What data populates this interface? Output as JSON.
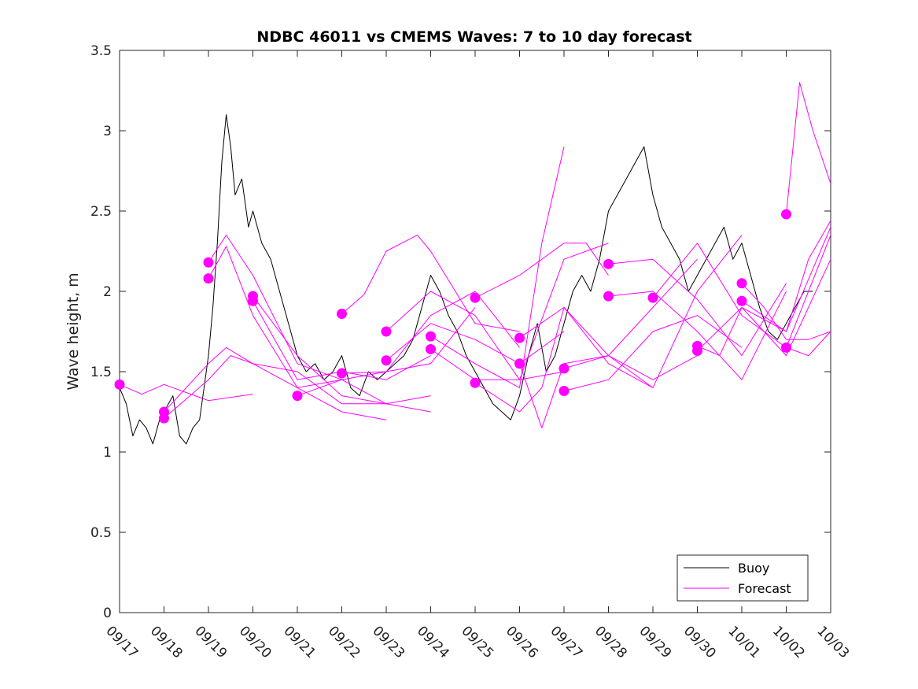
{
  "chart_data": {
    "type": "line",
    "title": "NDBC 46011 vs CMEMS Waves: 7 to 10 day forecast",
    "xlabel": "",
    "ylabel": "Wave height, m",
    "xlim": [
      0,
      16
    ],
    "ylim": [
      0,
      3.5
    ],
    "yticks": [
      "0",
      "0.5",
      "1",
      "1.5",
      "2",
      "2.5",
      "3",
      "3.5"
    ],
    "ytick_values": [
      0,
      0.5,
      1,
      1.5,
      2,
      2.5,
      3,
      3.5
    ],
    "xticks": [
      "09/17",
      "09/18",
      "09/19",
      "09/20",
      "09/21",
      "09/22",
      "09/23",
      "09/24",
      "09/25",
      "09/26",
      "09/27",
      "09/28",
      "09/29",
      "09/30",
      "10/01",
      "10/02",
      "10/03"
    ],
    "x_units": "days since 09/17 00:00",
    "colors": {
      "buoy": "#000000",
      "forecast": "#ff00ff"
    },
    "legend": {
      "position": "bottom-right",
      "entries": [
        "Buoy",
        "Forecast"
      ]
    },
    "series": [
      {
        "name": "Buoy",
        "x": [
          0,
          0.15,
          0.3,
          0.45,
          0.6,
          0.75,
          0.9,
          1.0,
          1.2,
          1.35,
          1.5,
          1.65,
          1.8,
          1.9,
          2.0,
          2.1,
          2.2,
          2.3,
          2.4,
          2.5,
          2.6,
          2.75,
          2.9,
          3.0,
          3.2,
          3.4,
          3.6,
          3.8,
          4.0,
          4.2,
          4.4,
          4.6,
          4.8,
          5.0,
          5.2,
          5.4,
          5.6,
          5.8,
          6.0,
          6.2,
          6.4,
          6.6,
          6.8,
          7.0,
          7.2,
          7.4,
          7.6,
          7.8,
          8.0,
          8.2,
          8.4,
          8.6,
          8.8,
          9.0,
          9.2,
          9.4,
          9.6,
          9.8,
          10.0,
          10.2,
          10.4,
          10.6,
          10.8,
          11.0,
          11.2,
          11.4,
          11.6,
          11.8,
          12.0,
          12.2,
          12.4,
          12.6,
          12.8,
          13.0,
          13.2,
          13.4,
          13.6,
          13.8,
          14.0,
          14.2,
          14.4,
          14.6,
          14.8,
          15.0,
          15.2,
          15.4,
          15.6
        ],
        "y": [
          1.4,
          1.3,
          1.1,
          1.2,
          1.15,
          1.05,
          1.2,
          1.25,
          1.35,
          1.1,
          1.05,
          1.15,
          1.2,
          1.4,
          1.6,
          1.9,
          2.3,
          2.8,
          3.1,
          2.9,
          2.6,
          2.7,
          2.4,
          2.5,
          2.3,
          2.2,
          2.0,
          1.8,
          1.6,
          1.5,
          1.55,
          1.45,
          1.5,
          1.6,
          1.4,
          1.35,
          1.5,
          1.45,
          1.5,
          1.55,
          1.6,
          1.7,
          1.9,
          2.1,
          2.0,
          1.85,
          1.75,
          1.6,
          1.5,
          1.4,
          1.3,
          1.25,
          1.2,
          1.35,
          1.6,
          1.8,
          1.5,
          1.6,
          1.8,
          2.0,
          2.1,
          2.0,
          2.2,
          2.5,
          2.6,
          2.7,
          2.8,
          2.9,
          2.6,
          2.4,
          2.3,
          2.2,
          2.0,
          2.1,
          2.2,
          2.3,
          2.4,
          2.2,
          2.3,
          2.1,
          1.9,
          1.75,
          1.7,
          1.8,
          1.9,
          2.0,
          2.0
        ]
      },
      {
        "name": "Forecast",
        "x": [
          0,
          0.5,
          1.0,
          2.0,
          3.0
        ],
        "y": [
          1.42,
          1.36,
          1.42,
          1.32,
          1.36
        ]
      },
      {
        "name": "Forecast",
        "x": [
          1.0,
          2.0,
          2.5,
          3.0,
          4.0,
          5.0,
          6.0,
          7.0
        ],
        "y": [
          1.21,
          1.45,
          1.6,
          1.55,
          1.5,
          1.3,
          1.3,
          1.25
        ]
      },
      {
        "name": "Forecast",
        "x": [
          1.0,
          2.0,
          2.4,
          3.0,
          4.0,
          5.0,
          6.0
        ],
        "y": [
          1.25,
          1.55,
          1.65,
          1.55,
          1.4,
          1.45,
          1.3
        ]
      },
      {
        "name": "Forecast",
        "x": [
          2.0,
          2.4,
          3.0,
          4.0,
          5.0
        ],
        "y": [
          2.18,
          2.35,
          2.1,
          1.55,
          1.45
        ]
      },
      {
        "name": "Forecast",
        "x": [
          2.0,
          2.4,
          3.0,
          4.0,
          5.0,
          6.0
        ],
        "y": [
          2.08,
          2.28,
          1.85,
          1.4,
          1.25,
          1.2
        ]
      },
      {
        "name": "Forecast",
        "x": [
          3.0,
          4.0,
          5.0,
          6.0,
          7.0
        ],
        "y": [
          1.97,
          1.6,
          1.35,
          1.3,
          1.35
        ]
      },
      {
        "name": "Forecast",
        "x": [
          3.0,
          4.0,
          5.0,
          6.0,
          7.0
        ],
        "y": [
          1.94,
          1.45,
          1.5,
          1.45,
          1.6
        ]
      },
      {
        "name": "Forecast",
        "x": [
          4.0,
          5.0,
          6.0,
          7.0,
          8.0
        ],
        "y": [
          1.35,
          1.45,
          1.5,
          1.55,
          1.9
        ]
      },
      {
        "name": "Forecast",
        "x": [
          5.0,
          5.5,
          6.0,
          6.7,
          7.0,
          8.0,
          9.0
        ],
        "y": [
          1.86,
          1.98,
          2.25,
          2.35,
          2.25,
          1.8,
          1.75
        ]
      },
      {
        "name": "Forecast",
        "x": [
          5.0,
          6.0,
          7.0,
          8.0,
          9.0
        ],
        "y": [
          1.49,
          1.5,
          1.85,
          2.0,
          1.65
        ]
      },
      {
        "name": "Forecast",
        "x": [
          6.0,
          7.0,
          8.0,
          9.0,
          10.0
        ],
        "y": [
          1.75,
          2.0,
          1.85,
          1.45,
          1.5
        ]
      },
      {
        "name": "Forecast",
        "x": [
          6.0,
          7.0,
          8.0,
          9.0,
          10.0
        ],
        "y": [
          1.57,
          1.8,
          1.7,
          1.55,
          1.75
        ]
      },
      {
        "name": "Forecast",
        "x": [
          7.0,
          8.0,
          9.0,
          9.5,
          10.0
        ],
        "y": [
          1.72,
          1.55,
          1.4,
          2.3,
          2.9
        ]
      },
      {
        "name": "Forecast",
        "x": [
          7.0,
          8.0,
          9.0,
          10.0,
          11.0
        ],
        "y": [
          1.64,
          1.45,
          1.45,
          2.2,
          2.3
        ]
      },
      {
        "name": "Forecast",
        "x": [
          8.0,
          9.0,
          10.0,
          10.5,
          11.0
        ],
        "y": [
          1.96,
          2.1,
          2.3,
          2.3,
          2.1
        ]
      },
      {
        "name": "Forecast",
        "x": [
          8.0,
          9.0,
          9.5,
          10.0,
          11.0,
          12.0
        ],
        "y": [
          1.43,
          1.25,
          1.4,
          1.9,
          1.55,
          1.4
        ]
      },
      {
        "name": "Forecast",
        "x": [
          9.0,
          10.0,
          11.0,
          12.0,
          13.0
        ],
        "y": [
          1.71,
          1.9,
          1.6,
          1.45,
          1.6
        ]
      },
      {
        "name": "Forecast",
        "x": [
          9.0,
          9.5,
          10.0,
          11.0,
          12.0,
          13.0
        ],
        "y": [
          1.55,
          1.15,
          1.55,
          1.6,
          1.9,
          2.2
        ]
      },
      {
        "name": "Forecast",
        "x": [
          10.0,
          11.0,
          12.0,
          13.0,
          14.0
        ],
        "y": [
          1.52,
          1.6,
          1.4,
          2.0,
          2.35
        ]
      },
      {
        "name": "Forecast",
        "x": [
          10.0,
          11.0,
          12.0,
          13.0,
          14.0
        ],
        "y": [
          1.38,
          1.45,
          1.75,
          1.85,
          1.65
        ]
      },
      {
        "name": "Forecast",
        "x": [
          11.0,
          12.0,
          13.0,
          14.0,
          15.0
        ],
        "y": [
          2.17,
          2.2,
          1.95,
          1.6,
          2.05
        ]
      },
      {
        "name": "Forecast",
        "x": [
          11.0,
          12.0,
          13.0,
          14.0,
          15.0
        ],
        "y": [
          1.97,
          2.0,
          1.75,
          1.45,
          2.0
        ]
      },
      {
        "name": "Forecast",
        "x": [
          12.0,
          13.0,
          14.0,
          15.0,
          16.0
        ],
        "y": [
          1.96,
          2.3,
          1.85,
          1.65,
          2.35
        ]
      },
      {
        "name": "Forecast",
        "x": [
          13.0,
          13.5,
          14.0,
          15.0,
          16.0
        ],
        "y": [
          1.66,
          1.6,
          1.9,
          1.6,
          2.2
        ]
      },
      {
        "name": "Forecast",
        "x": [
          13.0,
          14.0,
          15.0,
          16.0
        ],
        "y": [
          1.63,
          1.9,
          1.75,
          2.4
        ]
      },
      {
        "name": "Forecast",
        "x": [
          14.0,
          14.5,
          15.0,
          15.5,
          16.0
        ],
        "y": [
          2.05,
          1.9,
          1.7,
          1.7,
          1.75
        ]
      },
      {
        "name": "Forecast",
        "x": [
          14.0,
          15.0,
          15.5,
          16.0
        ],
        "y": [
          1.94,
          1.75,
          2.2,
          2.44
        ]
      },
      {
        "name": "Forecast",
        "x": [
          15.0,
          15.3,
          15.6,
          16.0
        ],
        "y": [
          2.48,
          3.3,
          3.0,
          2.67
        ]
      },
      {
        "name": "Forecast",
        "x": [
          15.0,
          15.5,
          16.0
        ],
        "y": [
          1.65,
          1.6,
          1.75
        ]
      }
    ],
    "forecast_markers": {
      "x": [
        0,
        1,
        1,
        2,
        2,
        3,
        3,
        4,
        5,
        5,
        6,
        6,
        7,
        7,
        8,
        8,
        9,
        9,
        10,
        10,
        11,
        11,
        12,
        13,
        13,
        14,
        14,
        15,
        15
      ],
      "y": [
        1.42,
        1.21,
        1.25,
        2.18,
        2.08,
        1.97,
        1.94,
        1.35,
        1.86,
        1.49,
        1.75,
        1.57,
        1.72,
        1.64,
        1.96,
        1.43,
        1.71,
        1.55,
        1.52,
        1.38,
        2.17,
        1.97,
        1.96,
        1.66,
        1.63,
        2.05,
        1.94,
        2.48,
        1.65
      ]
    }
  }
}
